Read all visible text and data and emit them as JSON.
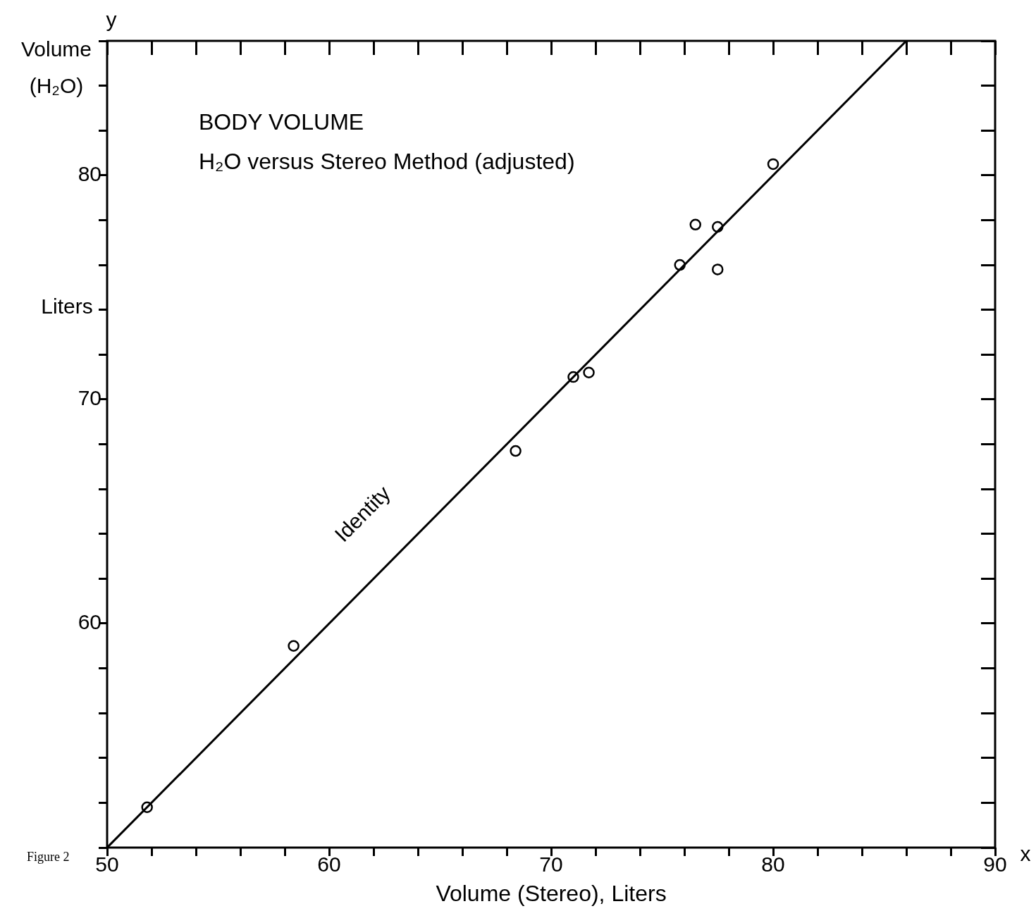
{
  "chart_data": {
    "type": "scatter",
    "title": "BODY VOLUME",
    "subtitle": "H₂O versus Stereo Method (adjusted)",
    "xlabel": "Volume (Stereo), Liters",
    "ylabel": "Volume (H₂O)",
    "annotations": [
      "Identity",
      "Liters",
      "y",
      "x",
      "Figure 2"
    ],
    "xlim": [
      50,
      90
    ],
    "ylim": [
      50,
      86
    ],
    "xticks": [
      50,
      {
        "value": 52,
        "label": null
      },
      {
        "value": 54,
        "label": null
      },
      {
        "value": 56,
        "label": null
      },
      {
        "value": 58,
        "label": null
      },
      60,
      {
        "value": 62,
        "label": null
      },
      {
        "value": 64,
        "label": null
      },
      {
        "value": 66,
        "label": null
      },
      {
        "value": 68,
        "label": null
      },
      70,
      {
        "value": 72,
        "label": null
      },
      {
        "value": 74,
        "label": null
      },
      {
        "value": 76,
        "label": null
      },
      {
        "value": 78,
        "label": null
      },
      80,
      {
        "value": 82,
        "label": null
      },
      {
        "value": 84,
        "label": null
      },
      {
        "value": 86,
        "label": null
      },
      {
        "value": 88,
        "label": null
      },
      90
    ],
    "yticks": [
      {
        "value": 50,
        "label": null
      },
      {
        "value": 52,
        "label": null
      },
      {
        "value": 54,
        "label": null
      },
      {
        "value": 56,
        "label": null
      },
      {
        "value": 58,
        "label": null
      },
      60,
      {
        "value": 62,
        "label": null
      },
      {
        "value": 64,
        "label": null
      },
      {
        "value": 66,
        "label": null
      },
      {
        "value": 68,
        "label": null
      },
      70,
      {
        "value": 72,
        "label": null
      },
      {
        "value": 74,
        "label": null
      },
      {
        "value": 76,
        "label": null
      },
      {
        "value": 78,
        "label": null
      },
      80,
      {
        "value": 82,
        "label": null
      },
      {
        "value": 84,
        "label": null
      },
      {
        "value": 86,
        "label": null
      }
    ],
    "grid": false,
    "legend": false,
    "marker": "circle",
    "series": [
      {
        "type": "scatter",
        "color": "#000000",
        "x": [
          51.8,
          58.4,
          68.4,
          71.0,
          71.7,
          75.8,
          76.5,
          77.5,
          77.5,
          80.0
        ],
        "values": [
          51.8,
          59.0,
          67.7,
          71.0,
          71.2,
          76.0,
          77.8,
          77.7,
          75.8,
          80.5
        ]
      },
      {
        "type": "line",
        "color": "#000000",
        "x": [
          50,
          86
        ],
        "values": [
          50,
          86
        ],
        "marker": "none",
        "line_style": "solid"
      }
    ]
  }
}
